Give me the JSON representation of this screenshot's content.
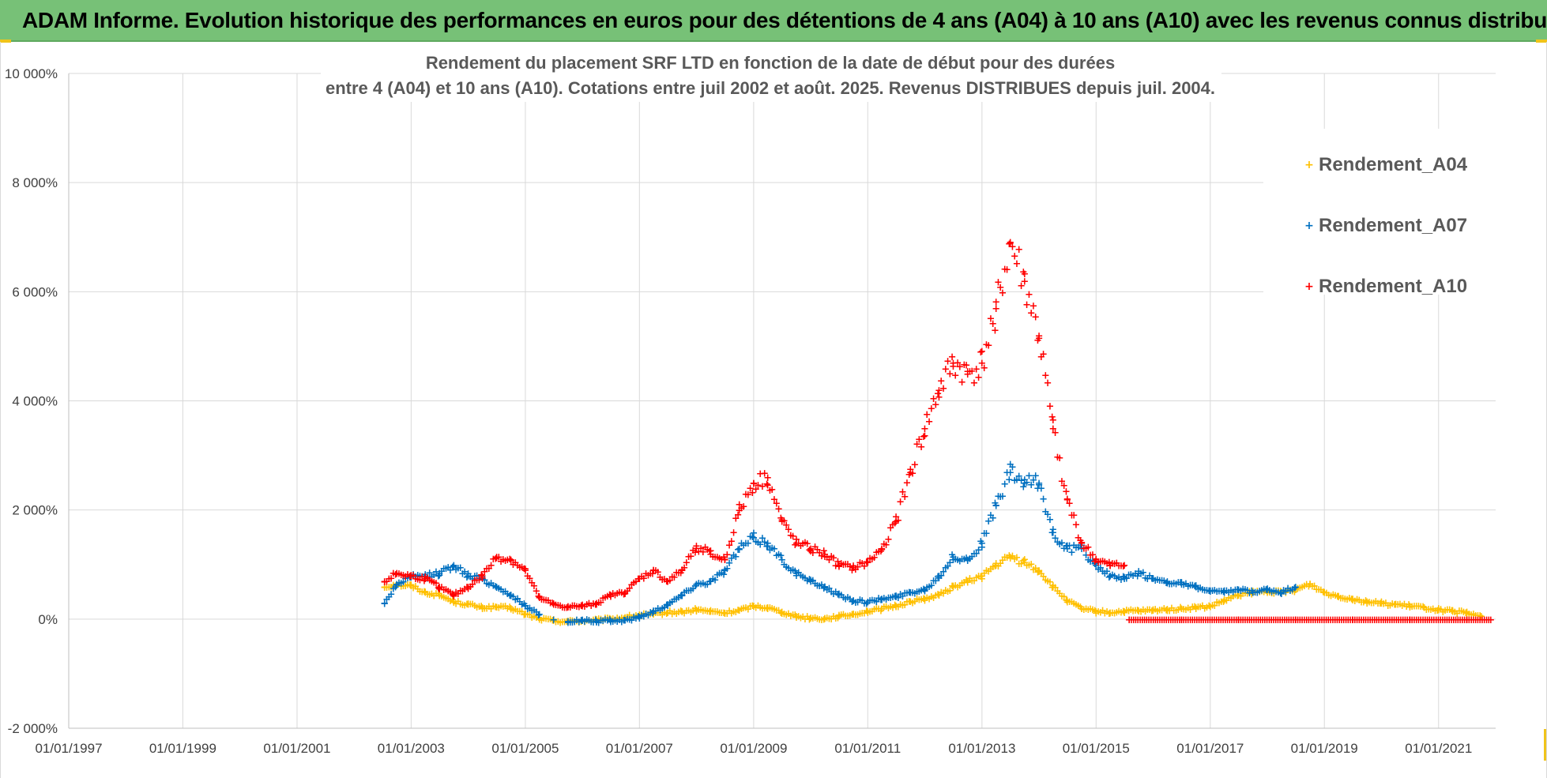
{
  "banner": {
    "text": "ADAM Informe. Evolution historique des performances en euros pour des détentions de 4 ans (A04) à 10 ans (A10) avec les revenus connus distribués"
  },
  "colors": {
    "banner": "#77c177",
    "A04": "#ffc000",
    "A07": "#0070c0",
    "A10": "#ff0000",
    "grid": "#d9d9d9",
    "corner": "#f0c419"
  },
  "chart_data": {
    "type": "scatter",
    "title_lines": [
      "Rendement du placement SRF LTD en fonction de la date de début pour des durées",
      "entre 4 (A04) et 10 ans (A10). Cotations entre juil 2002 et août. 2025. Revenus DISTRIBUES depuis juil. 2004."
    ],
    "xlabel": "",
    "ylabel": "",
    "x_range": [
      "1997-01-01",
      "2022-01-01"
    ],
    "ylim": [
      -2000,
      10000
    ],
    "y_ticks": [
      -2000,
      0,
      2000,
      4000,
      6000,
      8000,
      10000
    ],
    "y_tick_labels": [
      "-2 000%",
      "0%",
      "2 000%",
      "4 000%",
      "6 000%",
      "8 000%",
      "10 000%"
    ],
    "x_ticks": [
      "1997-01-01",
      "1999-01-01",
      "2001-01-01",
      "2003-01-01",
      "2005-01-01",
      "2007-01-01",
      "2009-01-01",
      "2011-01-01",
      "2013-01-01",
      "2015-01-01",
      "2017-01-01",
      "2019-01-01",
      "2021-01-01"
    ],
    "x_tick_labels": [
      "01/01/1997",
      "01/01/1999",
      "01/01/2001",
      "01/01/2003",
      "01/01/2005",
      "01/01/2007",
      "01/01/2009",
      "01/01/2011",
      "01/01/2013",
      "01/01/2015",
      "01/01/2017",
      "01/01/2019",
      "01/01/2021"
    ],
    "grid": true,
    "legend_position": "top-right",
    "marker": "+",
    "series": [
      {
        "name": "Rendement_A04",
        "color": "#ffc000",
        "points": [
          [
            "2002-07-15",
            600
          ],
          [
            "2002-10-01",
            650
          ],
          [
            "2003-01-01",
            620
          ],
          [
            "2003-04-01",
            500
          ],
          [
            "2003-07-01",
            450
          ],
          [
            "2003-10-01",
            330
          ],
          [
            "2004-01-01",
            280
          ],
          [
            "2004-04-01",
            220
          ],
          [
            "2004-07-01",
            230
          ],
          [
            "2004-10-01",
            210
          ],
          [
            "2005-01-01",
            100
          ],
          [
            "2005-04-01",
            20
          ],
          [
            "2005-07-01",
            -20
          ],
          [
            "2005-10-01",
            -30
          ],
          [
            "2006-01-01",
            -20
          ],
          [
            "2006-04-01",
            -10
          ],
          [
            "2006-07-01",
            10
          ],
          [
            "2006-10-01",
            40
          ],
          [
            "2007-01-01",
            80
          ],
          [
            "2007-04-01",
            100
          ],
          [
            "2007-07-01",
            130
          ],
          [
            "2007-10-01",
            140
          ],
          [
            "2008-01-01",
            180
          ],
          [
            "2008-04-01",
            150
          ],
          [
            "2008-07-01",
            120
          ],
          [
            "2008-10-01",
            170
          ],
          [
            "2009-01-01",
            250
          ],
          [
            "2009-04-01",
            220
          ],
          [
            "2009-07-01",
            140
          ],
          [
            "2009-10-01",
            60
          ],
          [
            "2010-01-01",
            30
          ],
          [
            "2010-04-01",
            20
          ],
          [
            "2010-07-01",
            60
          ],
          [
            "2010-10-01",
            100
          ],
          [
            "2011-01-01",
            150
          ],
          [
            "2011-04-01",
            200
          ],
          [
            "2011-07-01",
            250
          ],
          [
            "2011-10-01",
            330
          ],
          [
            "2012-01-01",
            380
          ],
          [
            "2012-04-01",
            450
          ],
          [
            "2012-07-01",
            600
          ],
          [
            "2012-10-01",
            700
          ],
          [
            "2013-01-01",
            800
          ],
          [
            "2013-04-01",
            1000
          ],
          [
            "2013-07-01",
            1150
          ],
          [
            "2013-10-01",
            1050
          ],
          [
            "2014-01-01",
            900
          ],
          [
            "2014-04-01",
            600
          ],
          [
            "2014-07-01",
            350
          ],
          [
            "2014-10-01",
            200
          ],
          [
            "2015-01-01",
            150
          ],
          [
            "2015-04-01",
            130
          ],
          [
            "2015-07-01",
            150
          ],
          [
            "2015-10-01",
            160
          ],
          [
            "2016-01-01",
            170
          ],
          [
            "2016-04-01",
            190
          ],
          [
            "2016-07-01",
            200
          ],
          [
            "2016-10-01",
            220
          ],
          [
            "2017-01-01",
            240
          ],
          [
            "2017-04-01",
            350
          ],
          [
            "2017-07-01",
            450
          ],
          [
            "2017-10-01",
            500
          ],
          [
            "2018-01-01",
            520
          ],
          [
            "2018-04-01",
            500
          ],
          [
            "2018-07-01",
            550
          ],
          [
            "2018-10-01",
            650
          ],
          [
            "2019-01-01",
            500
          ],
          [
            "2019-04-01",
            430
          ],
          [
            "2019-07-01",
            380
          ],
          [
            "2019-10-01",
            330
          ],
          [
            "2020-01-01",
            300
          ],
          [
            "2020-04-01",
            280
          ],
          [
            "2020-07-01",
            250
          ],
          [
            "2020-10-01",
            220
          ],
          [
            "2021-01-01",
            180
          ],
          [
            "2021-04-01",
            150
          ],
          [
            "2021-07-01",
            120
          ],
          [
            "2021-10-01",
            60
          ]
        ]
      },
      {
        "name": "Rendement_A07",
        "color": "#0070c0",
        "points": [
          [
            "2002-07-15",
            300
          ],
          [
            "2002-10-01",
            650
          ],
          [
            "2003-01-01",
            780
          ],
          [
            "2003-04-01",
            800
          ],
          [
            "2003-07-01",
            850
          ],
          [
            "2003-10-01",
            1000
          ],
          [
            "2004-01-01",
            800
          ],
          [
            "2004-04-01",
            750
          ],
          [
            "2004-07-01",
            600
          ],
          [
            "2004-10-01",
            450
          ],
          [
            "2005-01-01",
            250
          ],
          [
            "2005-04-01",
            100
          ],
          [
            "2005-07-01",
            0
          ],
          [
            "2005-10-01",
            -30
          ],
          [
            "2006-01-01",
            -20
          ],
          [
            "2006-04-01",
            -30
          ],
          [
            "2006-07-01",
            -20
          ],
          [
            "2006-10-01",
            -10
          ],
          [
            "2007-01-01",
            50
          ],
          [
            "2007-04-01",
            150
          ],
          [
            "2007-07-01",
            280
          ],
          [
            "2007-10-01",
            450
          ],
          [
            "2008-01-01",
            650
          ],
          [
            "2008-04-01",
            700
          ],
          [
            "2008-07-01",
            900
          ],
          [
            "2008-10-01",
            1300
          ],
          [
            "2009-01-01",
            1500
          ],
          [
            "2009-04-01",
            1400
          ],
          [
            "2009-07-01",
            1100
          ],
          [
            "2009-10-01",
            850
          ],
          [
            "2010-01-01",
            700
          ],
          [
            "2010-04-01",
            600
          ],
          [
            "2010-07-01",
            450
          ],
          [
            "2010-10-01",
            350
          ],
          [
            "2011-01-01",
            320
          ],
          [
            "2011-04-01",
            380
          ],
          [
            "2011-07-01",
            420
          ],
          [
            "2011-10-01",
            500
          ],
          [
            "2012-01-01",
            550
          ],
          [
            "2012-04-01",
            800
          ],
          [
            "2012-07-01",
            1150
          ],
          [
            "2012-10-01",
            1100
          ],
          [
            "2013-01-01",
            1400
          ],
          [
            "2013-04-01",
            2100
          ],
          [
            "2013-07-01",
            2700
          ],
          [
            "2013-10-01",
            2500
          ],
          [
            "2014-01-01",
            2500
          ],
          [
            "2014-04-01",
            1600
          ],
          [
            "2014-07-01",
            1300
          ],
          [
            "2014-10-01",
            1300
          ],
          [
            "2015-01-01",
            1000
          ],
          [
            "2015-04-01",
            800
          ],
          [
            "2015-07-01",
            750
          ],
          [
            "2015-10-01",
            850
          ],
          [
            "2016-01-01",
            750
          ],
          [
            "2016-04-01",
            700
          ],
          [
            "2016-07-01",
            650
          ],
          [
            "2016-10-01",
            600
          ],
          [
            "2017-01-01",
            520
          ],
          [
            "2017-04-01",
            500
          ],
          [
            "2017-07-01",
            550
          ],
          [
            "2017-10-01",
            500
          ],
          [
            "2018-01-01",
            550
          ],
          [
            "2018-04-01",
            500
          ],
          [
            "2018-07-01",
            600
          ]
        ]
      },
      {
        "name": "Rendement_A10",
        "color": "#ff0000",
        "points": [
          [
            "2002-07-15",
            700
          ],
          [
            "2002-10-01",
            850
          ],
          [
            "2003-01-01",
            800
          ],
          [
            "2003-04-01",
            750
          ],
          [
            "2003-07-01",
            600
          ],
          [
            "2003-10-01",
            450
          ],
          [
            "2004-01-01",
            600
          ],
          [
            "2004-04-01",
            800
          ],
          [
            "2004-07-01",
            1150
          ],
          [
            "2004-10-01",
            1100
          ],
          [
            "2005-01-01",
            900
          ],
          [
            "2005-04-01",
            400
          ],
          [
            "2005-07-01",
            280
          ],
          [
            "2005-10-01",
            230
          ],
          [
            "2006-01-01",
            250
          ],
          [
            "2006-04-01",
            300
          ],
          [
            "2006-07-01",
            450
          ],
          [
            "2006-10-01",
            500
          ],
          [
            "2007-01-01",
            750
          ],
          [
            "2007-04-01",
            900
          ],
          [
            "2007-07-01",
            700
          ],
          [
            "2007-10-01",
            900
          ],
          [
            "2008-01-01",
            1350
          ],
          [
            "2008-04-01",
            1200
          ],
          [
            "2008-07-01",
            1100
          ],
          [
            "2008-10-01",
            2000
          ],
          [
            "2009-01-01",
            2500
          ],
          [
            "2009-04-01",
            2600
          ],
          [
            "2009-07-01",
            1800
          ],
          [
            "2009-10-01",
            1400
          ],
          [
            "2010-01-01",
            1300
          ],
          [
            "2010-04-01",
            1200
          ],
          [
            "2010-07-01",
            1000
          ],
          [
            "2010-10-01",
            950
          ],
          [
            "2011-01-01",
            1050
          ],
          [
            "2011-04-01",
            1300
          ],
          [
            "2011-07-01",
            1800
          ],
          [
            "2011-10-01",
            2700
          ],
          [
            "2012-01-01",
            3500
          ],
          [
            "2012-04-01",
            4200
          ],
          [
            "2012-07-01",
            4700
          ],
          [
            "2012-10-01",
            4500
          ],
          [
            "2013-01-01",
            4700
          ],
          [
            "2013-04-01",
            5700
          ],
          [
            "2013-07-01",
            6900
          ],
          [
            "2013-10-01",
            6200
          ],
          [
            "2014-01-01",
            5200
          ],
          [
            "2014-04-01",
            3500
          ],
          [
            "2014-07-01",
            2200
          ],
          [
            "2014-10-01",
            1400
          ],
          [
            "2015-01-01",
            1100
          ],
          [
            "2015-04-01",
            1000
          ],
          [
            "2015-07-01",
            1000
          ],
          [
            "2015-08-01",
            0
          ],
          [
            "2016-07-01",
            0
          ],
          [
            "2017-07-01",
            0
          ],
          [
            "2018-07-01",
            0
          ],
          [
            "2019-07-01",
            0
          ],
          [
            "2020-07-01",
            0
          ],
          [
            "2021-07-01",
            0
          ],
          [
            "2021-12-01",
            0
          ]
        ]
      }
    ]
  }
}
